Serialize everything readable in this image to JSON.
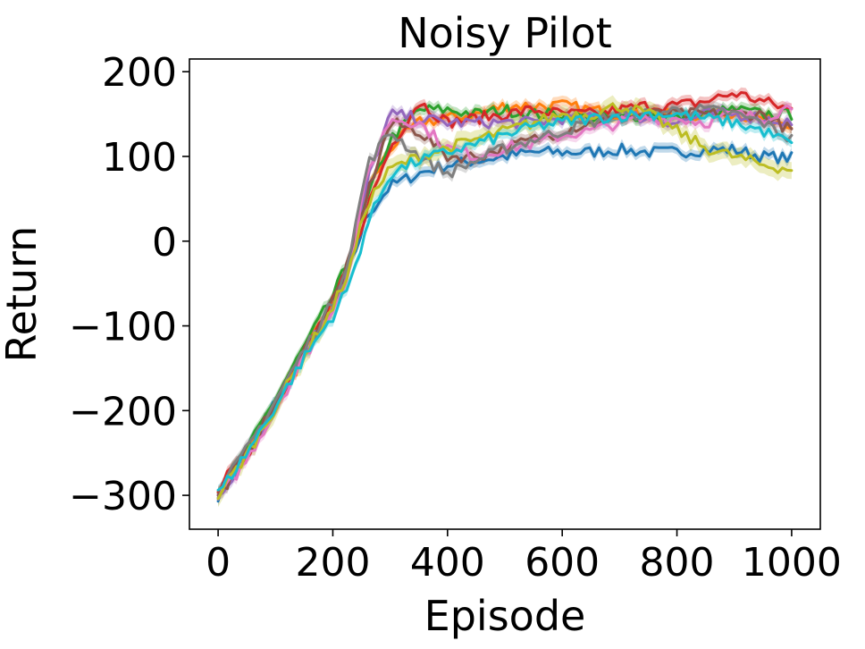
{
  "chart_data": {
    "type": "line",
    "title": "Noisy Pilot",
    "xlabel": "Episode",
    "ylabel": "Return",
    "xlim": [
      -50,
      1050
    ],
    "ylim": [
      -340,
      215
    ],
    "xticks": [
      0,
      200,
      400,
      600,
      800,
      1000
    ],
    "xtick_labels": [
      "0",
      "200",
      "400",
      "600",
      "800",
      "1000"
    ],
    "yticks": [
      -300,
      -200,
      -100,
      0,
      100,
      200
    ],
    "ytick_labels": [
      "−300",
      "−200",
      "−100",
      "0",
      "100",
      "200"
    ],
    "grid": false,
    "legend": "none",
    "x": [
      0,
      50,
      100,
      150,
      200,
      230,
      260,
      300,
      350,
      400,
      450,
      500,
      550,
      600,
      650,
      700,
      750,
      800,
      850,
      900,
      950,
      1000
    ],
    "series": [
      {
        "color": "#1f77b4",
        "values": [
          -300,
          -245,
          -190,
          -130,
          -75,
          -30,
          30,
          65,
          80,
          90,
          95,
          100,
          105,
          105,
          105,
          108,
          105,
          105,
          108,
          108,
          100,
          98
        ],
        "band": 6
      },
      {
        "color": "#ff7f0e",
        "values": [
          -298,
          -250,
          -195,
          -135,
          -70,
          -25,
          60,
          110,
          140,
          145,
          150,
          160,
          160,
          160,
          155,
          150,
          150,
          148,
          150,
          150,
          145,
          140
        ],
        "band": 6
      },
      {
        "color": "#2ca02c",
        "values": [
          -295,
          -248,
          -185,
          -125,
          -65,
          -20,
          50,
          120,
          155,
          155,
          150,
          155,
          150,
          150,
          145,
          145,
          150,
          145,
          150,
          155,
          150,
          150
        ],
        "band": 6
      },
      {
        "color": "#d62728",
        "values": [
          -290,
          -252,
          -190,
          -130,
          -72,
          -28,
          40,
          110,
          165,
          140,
          145,
          150,
          155,
          150,
          150,
          155,
          160,
          160,
          165,
          175,
          165,
          155
        ],
        "band": 6
      },
      {
        "color": "#9467bd",
        "values": [
          -300,
          -255,
          -195,
          -132,
          -74,
          -30,
          70,
          150,
          145,
          140,
          140,
          140,
          140,
          145,
          145,
          150,
          145,
          140,
          150,
          150,
          145,
          140
        ],
        "band": 6
      },
      {
        "color": "#8c564b",
        "values": [
          -302,
          -250,
          -192,
          -128,
          -70,
          -22,
          55,
          140,
          130,
          100,
          100,
          110,
          120,
          130,
          140,
          145,
          150,
          150,
          150,
          150,
          150,
          130
        ],
        "band": 6
      },
      {
        "color": "#e377c2",
        "values": [
          -305,
          -258,
          -198,
          -138,
          -78,
          -35,
          80,
          145,
          140,
          110,
          100,
          110,
          115,
          125,
          130,
          140,
          145,
          145,
          140,
          150,
          145,
          160
        ],
        "band": 6
      },
      {
        "color": "#7f7f7f",
        "values": [
          -296,
          -246,
          -188,
          -128,
          -72,
          -15,
          90,
          130,
          100,
          80,
          95,
          110,
          120,
          130,
          140,
          150,
          150,
          155,
          155,
          150,
          140,
          120
        ],
        "band": 6
      },
      {
        "color": "#bcbd22",
        "values": [
          -300,
          -252,
          -196,
          -135,
          -78,
          -32,
          45,
          85,
          100,
          110,
          120,
          130,
          140,
          150,
          150,
          160,
          150,
          130,
          110,
          100,
          90,
          85
        ],
        "band": 10
      },
      {
        "color": "#17becf",
        "values": [
          -298,
          -250,
          -195,
          -138,
          -88,
          -50,
          20,
          80,
          95,
          105,
          115,
          125,
          135,
          140,
          145,
          148,
          150,
          150,
          145,
          140,
          130,
          115
        ],
        "band": 6
      }
    ]
  }
}
